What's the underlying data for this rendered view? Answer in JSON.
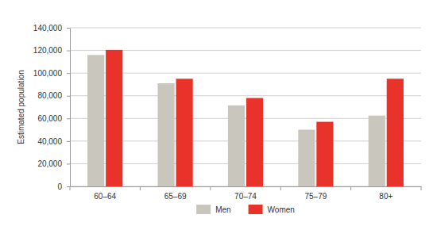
{
  "chart_data": {
    "type": "bar",
    "y_label": "Estimated population",
    "categories": [
      "60–64",
      "65–69",
      "70–74",
      "75–79",
      "80+"
    ],
    "series": [
      {
        "name": "Men",
        "color": "#c9c6bd",
        "values": [
          116000,
          91000,
          71500,
          50000,
          62500
        ]
      },
      {
        "name": "Women",
        "color": "#e8322a",
        "values": [
          120500,
          95000,
          78000,
          57000,
          95000
        ]
      }
    ],
    "ylim": [
      0,
      140000
    ],
    "yticks": [
      0,
      {
        "value": 20000,
        "label": "20,000"
      },
      {
        "value": 40000,
        "label": "40,000"
      },
      {
        "value": 60000,
        "label": "60,000"
      },
      {
        "value": 80000,
        "label": "80,000"
      },
      {
        "value": 100000,
        "label": "100,000"
      },
      {
        "value": 120000,
        "label": "120,000"
      },
      {
        "value": 140000,
        "label": "140,000"
      }
    ],
    "grid": true,
    "legend": "bottom"
  }
}
